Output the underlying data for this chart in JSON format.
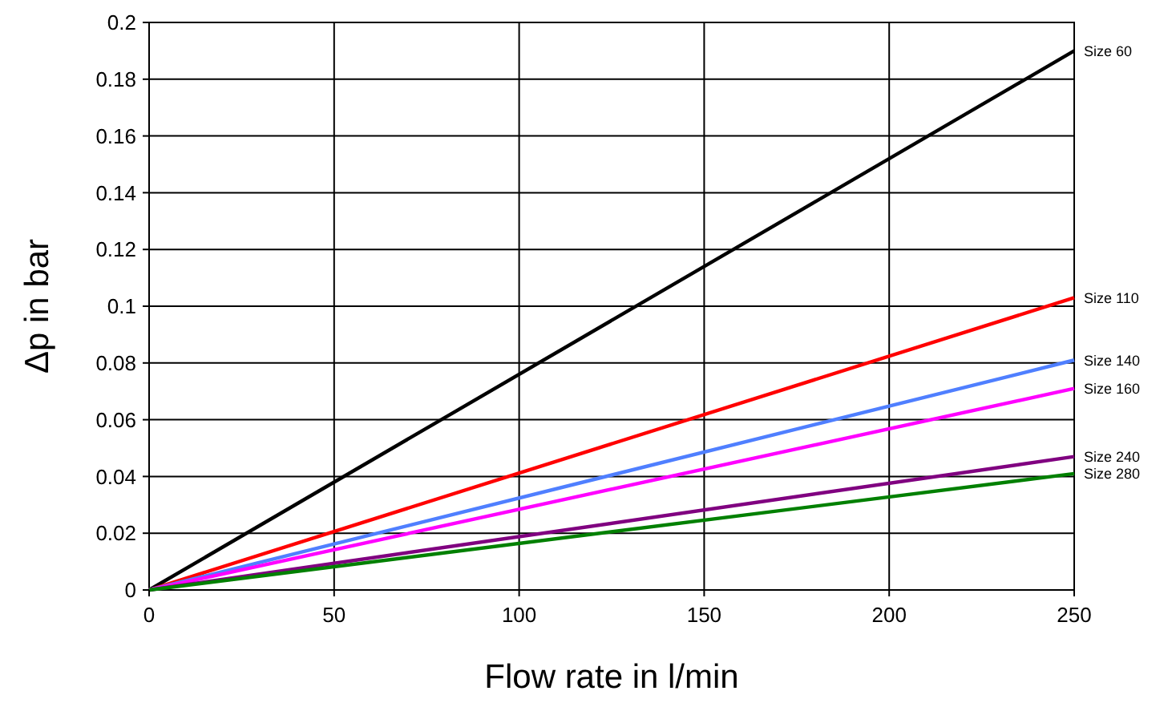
{
  "chart_data": {
    "type": "line",
    "xlabel": "Flow rate in l/min",
    "ylabel": "Δp in bar",
    "x": [
      0,
      250
    ],
    "series": [
      {
        "name": "Size 60",
        "color": "#000000",
        "values": [
          0,
          0.19
        ]
      },
      {
        "name": "Size 110",
        "color": "#ff0000",
        "values": [
          0,
          0.103
        ]
      },
      {
        "name": "Size 140",
        "color": "#4f7fff",
        "values": [
          0,
          0.081
        ]
      },
      {
        "name": "Size 160",
        "color": "#ff00ff",
        "values": [
          0,
          0.071
        ]
      },
      {
        "name": "Size 240",
        "color": "#800080",
        "values": [
          0,
          0.047
        ]
      },
      {
        "name": "Size 280",
        "color": "#008000",
        "values": [
          0,
          0.041
        ]
      }
    ],
    "xlim": [
      0,
      250
    ],
    "xticks": [
      0,
      50,
      100,
      150,
      200,
      250
    ],
    "ylim": [
      0,
      0.2
    ],
    "yticks": [
      {
        "value": 0,
        "label": "0"
      },
      {
        "value": 0.02,
        "label": "0.02"
      },
      {
        "value": 0.04,
        "label": "0.04"
      },
      {
        "value": 0.06,
        "label": "0.06"
      },
      {
        "value": 0.08,
        "label": "0.08"
      },
      {
        "value": 0.1,
        "label": "0.1"
      },
      {
        "value": 0.12,
        "label": "0.12"
      },
      {
        "value": 0.14,
        "label": "0.14"
      },
      {
        "value": 0.16,
        "label": "0.16"
      },
      {
        "value": 0.18,
        "label": "0.18"
      },
      {
        "value": 0.2,
        "label": "0.2"
      }
    ],
    "grid": true,
    "marker": "none",
    "line_style": "solid"
  }
}
